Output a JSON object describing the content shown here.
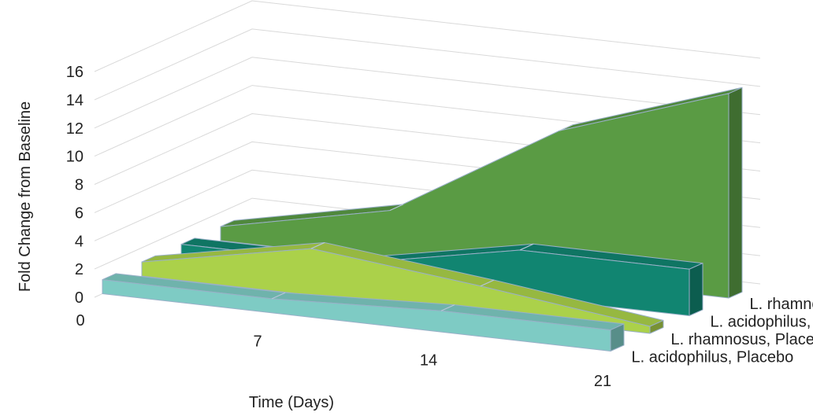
{
  "chart_data": {
    "type": "area",
    "view": "3d",
    "xlabel": "Time (Days)",
    "ylabel": "Fold Change from Baseline",
    "categories": [
      0,
      7,
      14,
      21
    ],
    "ylim": [
      0,
      16
    ],
    "yticks": [
      0,
      2,
      4,
      6,
      8,
      10,
      12,
      14,
      16
    ],
    "grid": true,
    "series": [
      {
        "name": "L. acidophilus, Placebo",
        "values": [
          1,
          1,
          1.5,
          1.5
        ],
        "color": "#7ECBC4"
      },
      {
        "name": "L. rhamnosus, Placebo",
        "values": [
          1,
          3.3,
          2,
          0.5
        ],
        "color": "#ABD14A"
      },
      {
        "name": "L. acidophilus, Treatment",
        "values": [
          1,
          1,
          3.3,
          3.3
        ],
        "color": "#118571"
      },
      {
        "name": "L. rhamnosus, Treatment",
        "values": [
          1,
          3.5,
          10.5,
          14.5
        ],
        "color": "#5A9B44"
      }
    ]
  }
}
